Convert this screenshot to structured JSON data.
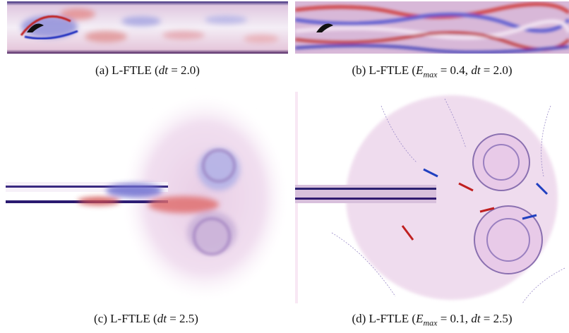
{
  "figure": {
    "panels": [
      {
        "caption": [
          "(a) L-FTLE (",
          "dt",
          " = 2.0)"
        ]
      },
      {
        "caption": [
          "(b) L-FTLE (",
          "E",
          "max",
          " = 0.4, ",
          "dt",
          " = 2.0)"
        ]
      },
      {
        "caption": [
          "(c) L-FTLE (",
          "dt",
          " = 2.5)"
        ]
      },
      {
        "caption": [
          "(d) L-FTLE (",
          "E",
          "max",
          " = 0.1, ",
          "dt",
          " = 2.5)"
        ]
      }
    ]
  }
}
